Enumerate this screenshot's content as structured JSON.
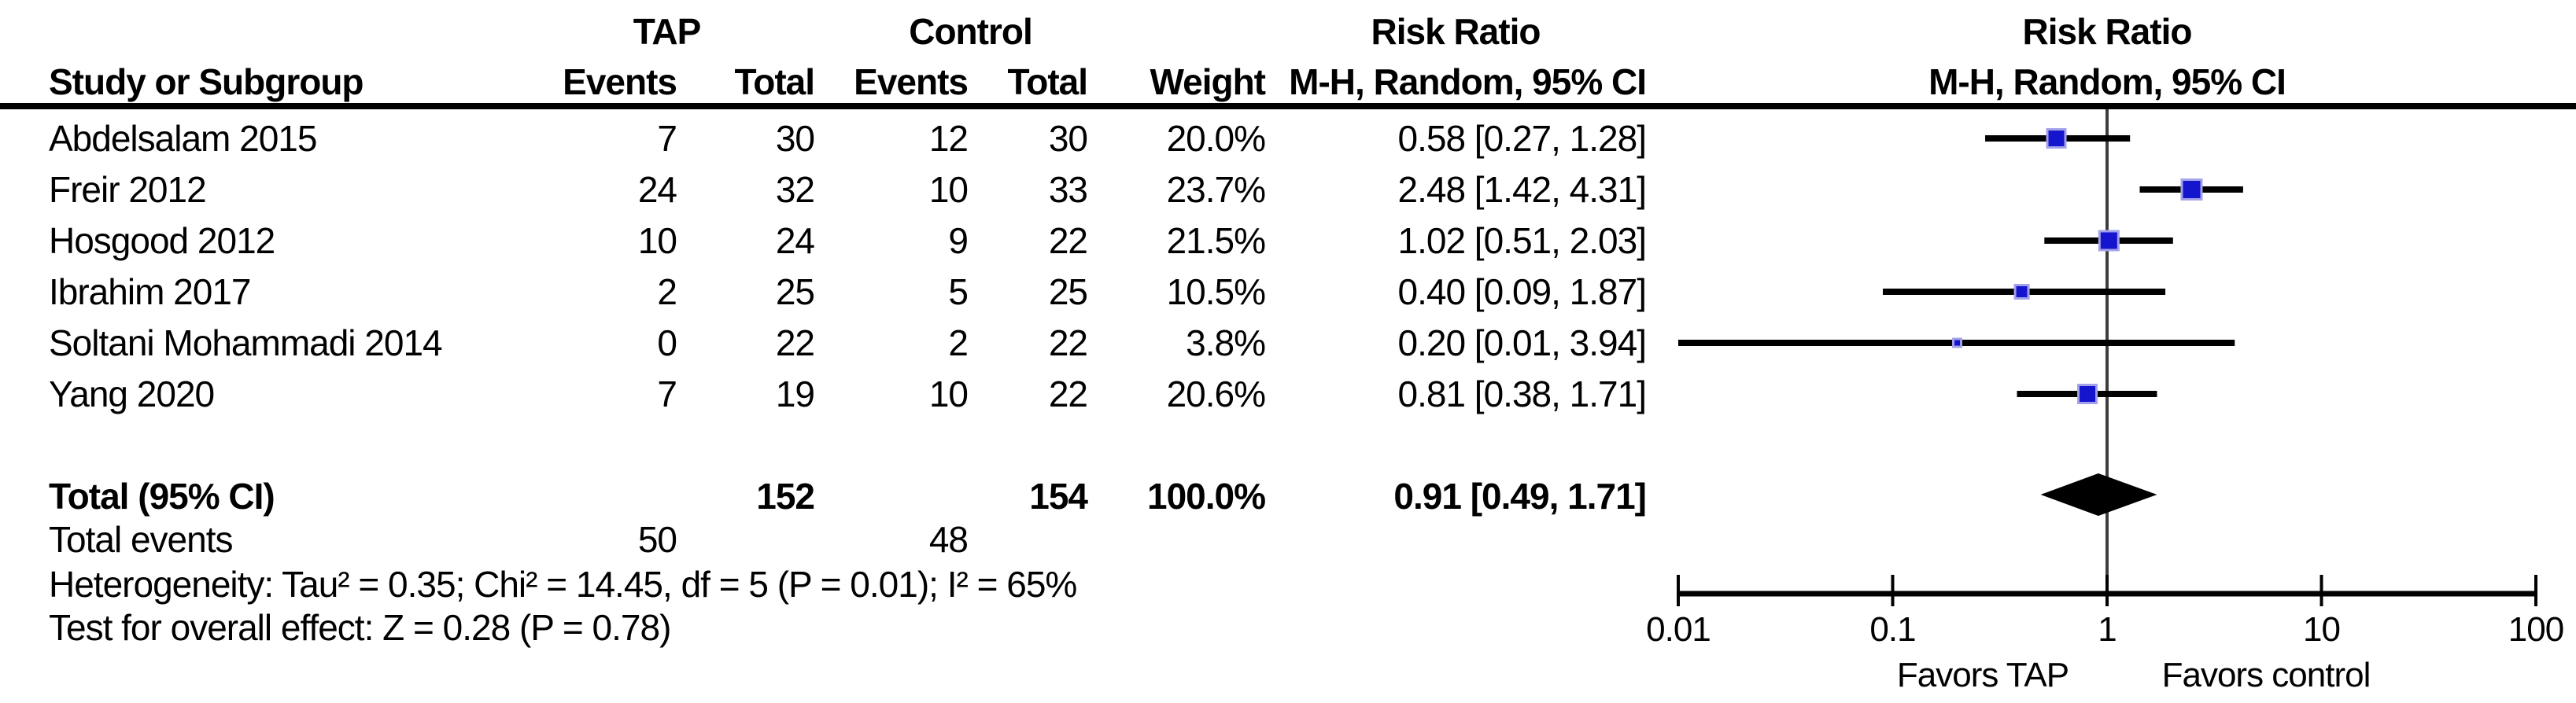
{
  "figure_type": "forest-plot",
  "group_headers": {
    "tap": "TAP",
    "control": "Control",
    "risk_ratio_text_col": "Risk Ratio",
    "risk_ratio_plot_col": "Risk Ratio"
  },
  "column_headers": {
    "study": "Study or Subgroup",
    "events_tap": "Events",
    "total_tap": "Total",
    "events_control": "Events",
    "total_control": "Total",
    "weight": "Weight",
    "ci_text": "M-H, Random, 95% CI",
    "ci_plot": "M-H, Random, 95% CI"
  },
  "studies": [
    {
      "name": "Abdelsalam 2015",
      "events_tap": "7",
      "total_tap": "30",
      "events_control": "12",
      "total_control": "30",
      "weight": "20.0%",
      "ci_text": "0.58 [0.27, 1.28]"
    },
    {
      "name": "Freir 2012",
      "events_tap": "24",
      "total_tap": "32",
      "events_control": "10",
      "total_control": "33",
      "weight": "23.7%",
      "ci_text": "2.48 [1.42, 4.31]"
    },
    {
      "name": "Hosgood 2012",
      "events_tap": "10",
      "total_tap": "24",
      "events_control": "9",
      "total_control": "22",
      "weight": "21.5%",
      "ci_text": "1.02 [0.51, 2.03]"
    },
    {
      "name": "Ibrahim 2017",
      "events_tap": "2",
      "total_tap": "25",
      "events_control": "5",
      "total_control": "25",
      "weight": "10.5%",
      "ci_text": "0.40 [0.09, 1.87]"
    },
    {
      "name": "Soltani Mohammadi 2014",
      "events_tap": "0",
      "total_tap": "22",
      "events_control": "2",
      "total_control": "22",
      "weight": "3.8%",
      "ci_text": "0.20 [0.01, 3.94]"
    },
    {
      "name": "Yang 2020",
      "events_tap": "7",
      "total_tap": "19",
      "events_control": "10",
      "total_control": "22",
      "weight": "20.6%",
      "ci_text": "0.81 [0.38, 1.71]"
    }
  ],
  "total_row": {
    "label": "Total (95% CI)",
    "total_tap": "152",
    "total_control": "154",
    "weight": "100.0%",
    "ci_text": "0.91 [0.49, 1.71]"
  },
  "total_events_row": {
    "label": "Total events",
    "events_tap": "50",
    "events_control": "48"
  },
  "heterogeneity_line": "Heterogeneity: Tau² = 0.35; Chi² = 14.45, df = 5 (P = 0.01); I² = 65%",
  "overall_effect_line": "Test for overall effect: Z = 0.28 (P = 0.78)",
  "chart_data": {
    "type": "forest",
    "effect_measure": "Risk Ratio",
    "method": "M-H, Random, 95% CI",
    "x_scale": "log10",
    "x_ticks": [
      0.01,
      0.1,
      1,
      10,
      100
    ],
    "x_tick_labels": [
      "0.01",
      "0.1",
      "1",
      "10",
      "100"
    ],
    "x_range": [
      0.01,
      100
    ],
    "null_line_at": 1,
    "axis_annotation_left": "Favors TAP",
    "axis_annotation_right": "Favors control",
    "studies": [
      {
        "name": "Abdelsalam 2015",
        "rr": 0.58,
        "ci_low": 0.27,
        "ci_high": 1.28,
        "weight_pct": 20.0
      },
      {
        "name": "Freir 2012",
        "rr": 2.48,
        "ci_low": 1.42,
        "ci_high": 4.31,
        "weight_pct": 23.7
      },
      {
        "name": "Hosgood 2012",
        "rr": 1.02,
        "ci_low": 0.51,
        "ci_high": 2.03,
        "weight_pct": 21.5
      },
      {
        "name": "Ibrahim 2017",
        "rr": 0.4,
        "ci_low": 0.09,
        "ci_high": 1.87,
        "weight_pct": 10.5
      },
      {
        "name": "Soltani Mohammadi 2014",
        "rr": 0.2,
        "ci_low": 0.01,
        "ci_high": 3.94,
        "weight_pct": 3.8
      },
      {
        "name": "Yang 2020",
        "rr": 0.81,
        "ci_low": 0.38,
        "ci_high": 1.71,
        "weight_pct": 20.6
      }
    ],
    "overall": {
      "label": "Total (95% CI)",
      "rr": 0.91,
      "ci_low": 0.49,
      "ci_high": 1.71,
      "weight_pct": 100.0
    }
  },
  "colors": {
    "square_fill": "#1515cd",
    "square_border": "#a3a1e8",
    "ci_line": "#000000",
    "null_line": "#3d3d3d",
    "diamond": "#000000",
    "rule": "#000000",
    "text": "#000000",
    "background": "#ffffff"
  }
}
